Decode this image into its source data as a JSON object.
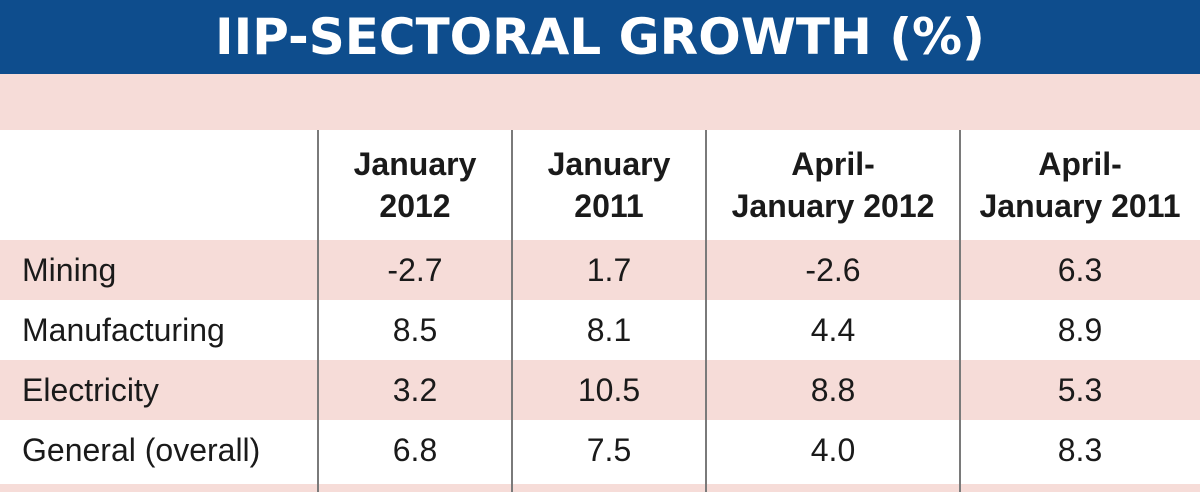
{
  "chart_data": {
    "type": "table",
    "title": "IIP-SECTORAL GROWTH (%)",
    "columns": [
      [
        "January",
        "2012"
      ],
      [
        "January",
        "2011"
      ],
      [
        "April-",
        "January 2012"
      ],
      [
        "April-",
        "January 2011"
      ]
    ],
    "rows": [
      {
        "label": "Mining",
        "values": [
          "-2.7",
          "1.7",
          "-2.6",
          "6.3"
        ]
      },
      {
        "label": "Manufacturing",
        "values": [
          "8.5",
          "8.1",
          "4.4",
          "8.9"
        ]
      },
      {
        "label": "Electricity",
        "values": [
          "3.2",
          "10.5",
          "8.8",
          "5.3"
        ]
      },
      {
        "label": "General (overall)",
        "values": [
          "6.8",
          "7.5",
          "4.0",
          "8.3"
        ]
      }
    ]
  },
  "colors": {
    "title_bar": "#0e4d8d",
    "title_text": "#ffffff",
    "band": "#f6dcd8",
    "divider": "#7a7a7a",
    "text": "#1a1a1a"
  }
}
